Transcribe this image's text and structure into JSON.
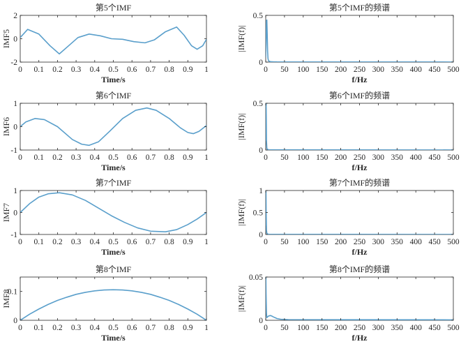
{
  "style": {
    "line_color": "#5a9fcb",
    "axis_color": "#262626",
    "background": "#ffffff"
  },
  "chart_data": [
    {
      "type": "line",
      "title": "第5个IMF",
      "xlabel": "Time/s",
      "ylabel": "IMF5",
      "xlim": [
        0,
        1
      ],
      "ylim": [
        -2,
        2
      ],
      "xticks": [
        0,
        0.1,
        0.2,
        0.3,
        0.4,
        0.5,
        0.6,
        0.7,
        0.8,
        0.9,
        1
      ],
      "xtick_labels": [
        "0",
        "0.1",
        "0.2",
        "0.3",
        "0.4",
        "0.5",
        "0.6",
        "0.7",
        "0.8",
        "0.9",
        "1"
      ],
      "yticks": [
        -2,
        0,
        2
      ],
      "ytick_labels": [
        "-2",
        "0",
        "2"
      ],
      "series": [
        {
          "x": [
            0,
            0.04,
            0.1,
            0.16,
            0.21,
            0.26,
            0.31,
            0.37,
            0.43,
            0.49,
            0.55,
            0.61,
            0.67,
            0.72,
            0.78,
            0.84,
            0.88,
            0.92,
            0.95,
            0.98,
            1.0
          ],
          "y": [
            0.1,
            0.8,
            0.4,
            -0.6,
            -1.3,
            -0.6,
            0.1,
            0.4,
            0.25,
            0.0,
            -0.05,
            -0.25,
            -0.35,
            -0.1,
            0.6,
            1.0,
            0.3,
            -0.6,
            -0.9,
            -0.6,
            -0.05
          ]
        }
      ]
    },
    {
      "type": "line",
      "title": "第5个IMF的频谱",
      "xlabel": "f/Hz",
      "ylabel": "|IMF(f)|",
      "xlim": [
        0,
        500
      ],
      "ylim": [
        0,
        0.5
      ],
      "xticks": [
        0,
        50,
        100,
        150,
        200,
        250,
        300,
        350,
        400,
        450,
        500
      ],
      "xtick_labels": [
        "0",
        "50",
        "100",
        "150",
        "200",
        "250",
        "300",
        "350",
        "400",
        "450",
        "500"
      ],
      "yticks": [
        0,
        0.5
      ],
      "ytick_labels": [
        "0",
        "0.5"
      ],
      "series": [
        {
          "x": [
            0,
            1,
            2,
            3,
            4,
            5,
            6,
            7,
            8,
            10,
            12,
            15,
            20,
            30,
            500
          ],
          "y": [
            0.05,
            0.2,
            0.44,
            0.45,
            0.3,
            0.12,
            0.04,
            0.02,
            0.012,
            0.008,
            0.005,
            0.004,
            0.003,
            0.002,
            0.001
          ]
        }
      ]
    },
    {
      "type": "line",
      "title": "第6个IMF",
      "xlabel": "Time/s",
      "ylabel": "IMF6",
      "xlim": [
        0,
        1
      ],
      "ylim": [
        -1,
        1
      ],
      "xticks": [
        0,
        0.1,
        0.2,
        0.3,
        0.4,
        0.5,
        0.6,
        0.7,
        0.8,
        0.9,
        1
      ],
      "xtick_labels": [
        "0",
        "0.1",
        "0.2",
        "0.3",
        "0.4",
        "0.5",
        "0.6",
        "0.7",
        "0.8",
        "0.9",
        "1"
      ],
      "yticks": [
        -1,
        0,
        1
      ],
      "ytick_labels": [
        "-1",
        "0",
        "1"
      ],
      "series": [
        {
          "x": [
            0,
            0.03,
            0.08,
            0.13,
            0.2,
            0.28,
            0.33,
            0.37,
            0.42,
            0.48,
            0.55,
            0.62,
            0.68,
            0.73,
            0.8,
            0.86,
            0.9,
            0.93,
            0.96,
            1.0
          ],
          "y": [
            0.0,
            0.2,
            0.35,
            0.3,
            0.0,
            -0.55,
            -0.75,
            -0.8,
            -0.65,
            -0.2,
            0.35,
            0.7,
            0.8,
            0.7,
            0.35,
            -0.05,
            -0.25,
            -0.3,
            -0.2,
            0.05
          ]
        }
      ]
    },
    {
      "type": "line",
      "title": "第6个IMF的频谱",
      "xlabel": "f/Hz",
      "ylabel": "|IMF(f)|",
      "xlim": [
        0,
        500
      ],
      "ylim": [
        0,
        0.5
      ],
      "xticks": [
        0,
        50,
        100,
        150,
        200,
        250,
        300,
        350,
        400,
        450,
        500
      ],
      "xtick_labels": [
        "0",
        "50",
        "100",
        "150",
        "200",
        "250",
        "300",
        "350",
        "400",
        "450",
        "500"
      ],
      "yticks": [
        0,
        0.5
      ],
      "ytick_labels": [
        "0",
        "0.5"
      ],
      "series": [
        {
          "x": [
            0,
            0.5,
            1,
            1.5,
            2,
            3,
            4,
            6,
            10,
            500
          ],
          "y": [
            0.1,
            0.49,
            0.5,
            0.35,
            0.1,
            0.02,
            0.01,
            0.005,
            0.002,
            0.001
          ]
        }
      ]
    },
    {
      "type": "line",
      "title": "第7个IMF",
      "xlabel": "Time/s",
      "ylabel": "IMF7",
      "xlim": [
        0,
        1
      ],
      "ylim": [
        -1,
        1
      ],
      "xticks": [
        0,
        0.1,
        0.2,
        0.3,
        0.4,
        0.5,
        0.6,
        0.7,
        0.8,
        0.9,
        1
      ],
      "xtick_labels": [
        "0",
        "0.1",
        "0.2",
        "0.3",
        "0.4",
        "0.5",
        "0.6",
        "0.7",
        "0.8",
        "0.9",
        "1"
      ],
      "yticks": [
        -1,
        0,
        1
      ],
      "ytick_labels": [
        "-1",
        "0",
        "1"
      ],
      "series": [
        {
          "x": [
            0,
            0.05,
            0.1,
            0.15,
            0.21,
            0.28,
            0.35,
            0.42,
            0.49,
            0.56,
            0.63,
            0.7,
            0.78,
            0.84,
            0.9,
            0.95,
            1.0
          ],
          "y": [
            0.0,
            0.4,
            0.7,
            0.85,
            0.9,
            0.8,
            0.55,
            0.2,
            -0.15,
            -0.45,
            -0.7,
            -0.85,
            -0.88,
            -0.78,
            -0.55,
            -0.3,
            0.0
          ]
        }
      ]
    },
    {
      "type": "line",
      "title": "第7个IMF的频谱",
      "xlabel": "f/Hz",
      "ylabel": "|IMF(f)|",
      "xlim": [
        0,
        500
      ],
      "ylim": [
        0,
        1
      ],
      "xticks": [
        0,
        50,
        100,
        150,
        200,
        250,
        300,
        350,
        400,
        450,
        500
      ],
      "xtick_labels": [
        "0",
        "50",
        "100",
        "150",
        "200",
        "250",
        "300",
        "350",
        "400",
        "450",
        "500"
      ],
      "yticks": [
        0,
        0.5,
        1
      ],
      "ytick_labels": [
        "0",
        "0.5",
        "1"
      ],
      "series": [
        {
          "x": [
            0,
            0.4,
            0.8,
            1.2,
            2,
            3,
            5,
            10,
            500
          ],
          "y": [
            0.2,
            0.98,
            0.95,
            0.5,
            0.1,
            0.03,
            0.01,
            0.004,
            0.001
          ]
        }
      ]
    },
    {
      "type": "line",
      "title": "第8个IMF",
      "xlabel": "Time/s",
      "ylabel": "IMF8",
      "xlim": [
        0,
        1
      ],
      "ylim": [
        0,
        0.15
      ],
      "xticks": [
        0,
        0.1,
        0.2,
        0.3,
        0.4,
        0.5,
        0.6,
        0.7,
        0.8,
        0.9,
        1
      ],
      "xtick_labels": [
        "0",
        "0.1",
        "0.2",
        "0.3",
        "0.4",
        "0.5",
        "0.6",
        "0.7",
        "0.8",
        "0.9",
        "1"
      ],
      "yticks": [
        0,
        0.1
      ],
      "ytick_labels": [
        "0",
        "0.1"
      ],
      "series": [
        {
          "x": [
            0,
            0.05,
            0.1,
            0.15,
            0.2,
            0.25,
            0.3,
            0.35,
            0.4,
            0.45,
            0.5,
            0.55,
            0.6,
            0.65,
            0.7,
            0.75,
            0.8,
            0.85,
            0.9,
            0.95,
            1.0
          ],
          "y": [
            0.0,
            0.021,
            0.039,
            0.055,
            0.069,
            0.08,
            0.09,
            0.097,
            0.102,
            0.105,
            0.106,
            0.105,
            0.102,
            0.097,
            0.09,
            0.08,
            0.069,
            0.055,
            0.039,
            0.021,
            0.0
          ]
        }
      ]
    },
    {
      "type": "line",
      "title": "第8个IMF的频谱",
      "xlabel": "f/Hz",
      "ylabel": "|IMF(f)|",
      "xlim": [
        0,
        500
      ],
      "ylim": [
        0,
        0.05
      ],
      "xticks": [
        0,
        50,
        100,
        150,
        200,
        250,
        300,
        350,
        400,
        450,
        500
      ],
      "xtick_labels": [
        "0",
        "50",
        "100",
        "150",
        "200",
        "250",
        "300",
        "350",
        "400",
        "450",
        "500"
      ],
      "yticks": [
        0,
        0.05
      ],
      "ytick_labels": [
        "0",
        "0.05"
      ],
      "series": [
        {
          "x": [
            0,
            0.5,
            1,
            2,
            3,
            5,
            8,
            12,
            16,
            20,
            25,
            30,
            40,
            60,
            500
          ],
          "y": [
            0.045,
            0.05,
            0.03,
            0.008,
            0.003,
            0.004,
            0.005,
            0.0055,
            0.005,
            0.004,
            0.003,
            0.002,
            0.0012,
            0.0008,
            0.0005
          ]
        }
      ]
    }
  ]
}
